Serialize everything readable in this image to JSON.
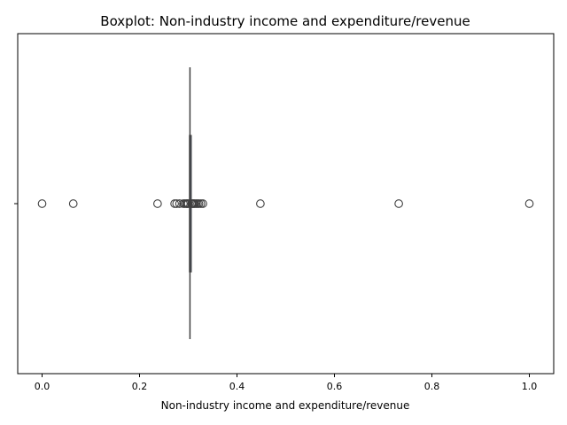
{
  "chart_data": {
    "type": "boxplot",
    "orientation": "horizontal",
    "title": "Boxplot:  Non-industry income and expenditure/revenue",
    "xlabel": " Non-industry income and expenditure/revenue",
    "ylabel": "",
    "xlim": [
      -0.05,
      1.05
    ],
    "xticks": [
      0.0,
      0.2,
      0.4,
      0.6,
      0.8,
      1.0
    ],
    "xtick_labels": [
      "0.0",
      "0.2",
      "0.4",
      "0.6",
      "0.8",
      "1.0"
    ],
    "grid": false,
    "box": {
      "q1": 0.3034,
      "median": 0.3035,
      "q3": 0.3036,
      "whisker_low": 0.3025,
      "whisker_high": 0.3045
    },
    "outliers": [
      0.0,
      0.064,
      0.237,
      0.272,
      0.276,
      0.282,
      0.29,
      0.293,
      0.296,
      0.298,
      0.3,
      0.307,
      0.309,
      0.311,
      0.313,
      0.316,
      0.319,
      0.322,
      0.326,
      0.33,
      0.448,
      0.732,
      1.0
    ],
    "colors": {
      "box_edge": "#3f3f3f",
      "outlier_edge": "#3f3f3f",
      "axis": "#000000"
    }
  }
}
